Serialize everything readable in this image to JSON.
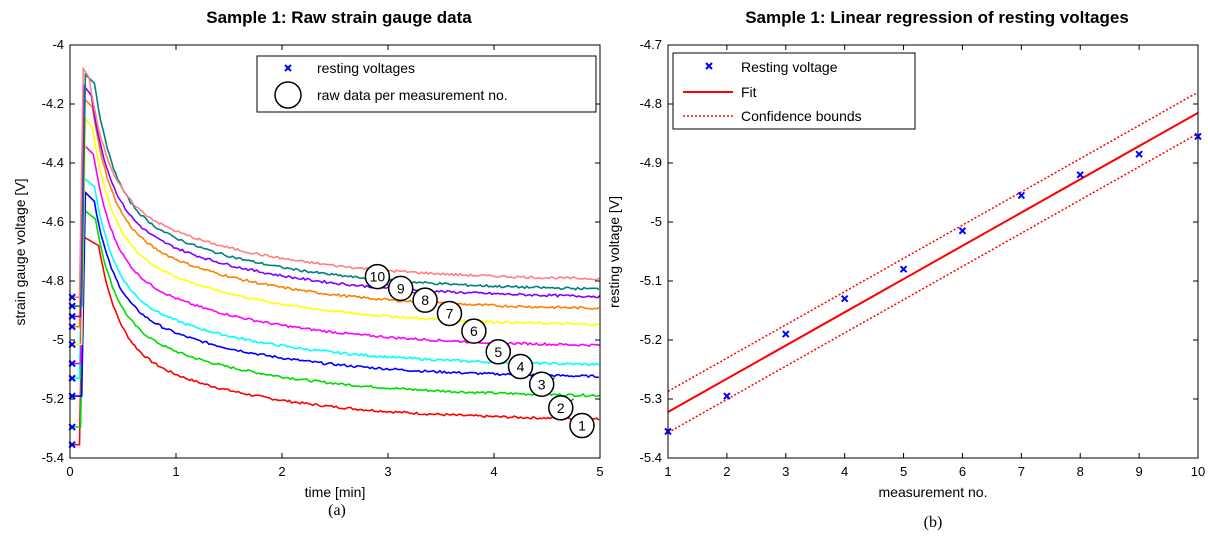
{
  "chart_data": [
    {
      "type": "line",
      "title": "Sample 1: Raw strain gauge data",
      "xlabel": "time [min]",
      "ylabel": "strain gauge voltage [V]",
      "sublabel": "(a)",
      "xlim": [
        0,
        5
      ],
      "ylim": [
        -5.4,
        -4.0
      ],
      "xticks": [
        "0",
        "1",
        "2",
        "3",
        "4",
        "5"
      ],
      "xtick_values": [
        0,
        1,
        2,
        3,
        4,
        5
      ],
      "yticks": [
        "-5.4",
        "-5.2",
        "-5",
        "-4.8",
        "-4.6",
        "-4.4",
        "-4.2",
        "-4"
      ],
      "ytick_values": [
        -5.4,
        -5.2,
        -5.0,
        -4.8,
        -4.6,
        -4.4,
        -4.2,
        -4.0
      ],
      "grid": false,
      "legend_position": "top-right",
      "legend": [
        {
          "label": "resting voltages",
          "marker": "x",
          "color": "#0000ff"
        },
        {
          "label": "raw data per measurement no.",
          "marker": "circle",
          "color": "#000000"
        }
      ],
      "resting_voltages": [
        -5.355,
        -5.295,
        -5.19,
        -5.13,
        -5.08,
        -5.015,
        -4.955,
        -4.92,
        -4.885,
        -4.855
      ],
      "series": [
        {
          "label": "1",
          "color": "#ff0000",
          "resting": -5.355,
          "peak": -4.68,
          "peak_x": 0.27,
          "end": -5.275,
          "tail_x": 4.95,
          "tail_y": -5.29
        },
        {
          "label": "2",
          "color": "#00dd00",
          "resting": -5.295,
          "peak": -4.59,
          "peak_x": 0.24,
          "end": -5.195,
          "tail_x": 4.75,
          "tail_y": -5.2
        },
        {
          "label": "3",
          "color": "#0000ff",
          "resting": -5.19,
          "peak": -4.53,
          "peak_x": 0.23,
          "end": -5.13,
          "tail_x": 4.57,
          "tail_y": -5.13
        },
        {
          "label": "4",
          "color": "#00ffff",
          "resting": -5.13,
          "peak": -4.48,
          "peak_x": 0.23,
          "end": -5.09,
          "tail_x": 4.37,
          "tail_y": -5.08
        },
        {
          "label": "5",
          "color": "#ff00ff",
          "resting": -5.08,
          "peak": -4.37,
          "peak_x": 0.22,
          "end": -5.025,
          "tail_x": 4.16,
          "tail_y": -5.03
        },
        {
          "label": "6",
          "color": "#ffff00",
          "resting": -5.015,
          "peak": -4.28,
          "peak_x": 0.21,
          "end": -4.955,
          "tail_x": 3.93,
          "tail_y": -4.96
        },
        {
          "label": "7",
          "color": "#ff8000",
          "resting": -4.955,
          "peak": -4.21,
          "peak_x": 0.21,
          "end": -4.9,
          "tail_x": 3.7,
          "tail_y": -4.91
        },
        {
          "label": "8",
          "color": "#8000ff",
          "resting": -4.92,
          "peak": -4.17,
          "peak_x": 0.2,
          "end": -4.86,
          "tail_x": 3.47,
          "tail_y": -4.87
        },
        {
          "label": "9",
          "color": "#008080",
          "resting": -4.885,
          "peak": -4.13,
          "peak_x": 0.23,
          "end": -4.835,
          "tail_x": 3.25,
          "tail_y": -4.84
        },
        {
          "label": "10",
          "color": "#ff8080",
          "resting": -4.855,
          "peak": -4.11,
          "peak_x": 0.18,
          "end": -4.8,
          "tail_x": 3.02,
          "tail_y": -4.82
        }
      ],
      "measurement_labels": [
        {
          "text": "1",
          "x": 4.83,
          "y": -5.29
        },
        {
          "text": "2",
          "x": 4.63,
          "y": -5.23
        },
        {
          "text": "3",
          "x": 4.45,
          "y": -5.15
        },
        {
          "text": "4",
          "x": 4.25,
          "y": -5.09
        },
        {
          "text": "5",
          "x": 4.04,
          "y": -5.04
        },
        {
          "text": "6",
          "x": 3.81,
          "y": -4.97
        },
        {
          "text": "7",
          "x": 3.58,
          "y": -4.91
        },
        {
          "text": "8",
          "x": 3.35,
          "y": -4.865
        },
        {
          "text": "9",
          "x": 3.12,
          "y": -4.825
        },
        {
          "text": "10",
          "x": 2.9,
          "y": -4.785
        }
      ]
    },
    {
      "type": "line",
      "title": "Sample 1: Linear regression of resting voltages",
      "xlabel": "measurement no.",
      "ylabel": "resting voltage [V]",
      "sublabel": "(b)",
      "xlim": [
        1,
        10
      ],
      "ylim": [
        -5.4,
        -4.7
      ],
      "xticks": [
        "1",
        "2",
        "3",
        "4",
        "5",
        "6",
        "7",
        "8",
        "9",
        "10"
      ],
      "xtick_values": [
        1,
        2,
        3,
        4,
        5,
        6,
        7,
        8,
        9,
        10
      ],
      "yticks": [
        "-5.4",
        "-5.3",
        "-5.2",
        "-5.1",
        "-5",
        "-4.9",
        "-4.8",
        "-4.7"
      ],
      "ytick_values": [
        -5.4,
        -5.3,
        -5.2,
        -5.1,
        -5.0,
        -4.9,
        -4.8,
        -4.7
      ],
      "grid": false,
      "legend_position": "top-left",
      "legend": [
        {
          "label": "Resting voltage",
          "marker": "x",
          "color": "#0000ff"
        },
        {
          "label": "Fit",
          "marker": "solid-line",
          "color": "#ff0000"
        },
        {
          "label": "Confidence bounds",
          "marker": "dotted-line",
          "color": "#ff0000"
        }
      ],
      "x": [
        1,
        2,
        3,
        4,
        5,
        6,
        7,
        8,
        9,
        10
      ],
      "resting_voltage": [
        -5.355,
        -5.295,
        -5.19,
        -5.13,
        -5.08,
        -5.015,
        -4.955,
        -4.92,
        -4.885,
        -4.855
      ],
      "fit": {
        "y_at_1": -5.322,
        "y_at_10": -4.815
      },
      "confidence_upper": {
        "y_at_1": -5.287,
        "y_at_10": -4.78
      },
      "confidence_lower": {
        "y_at_1": -5.357,
        "y_at_10": -4.85
      }
    }
  ]
}
